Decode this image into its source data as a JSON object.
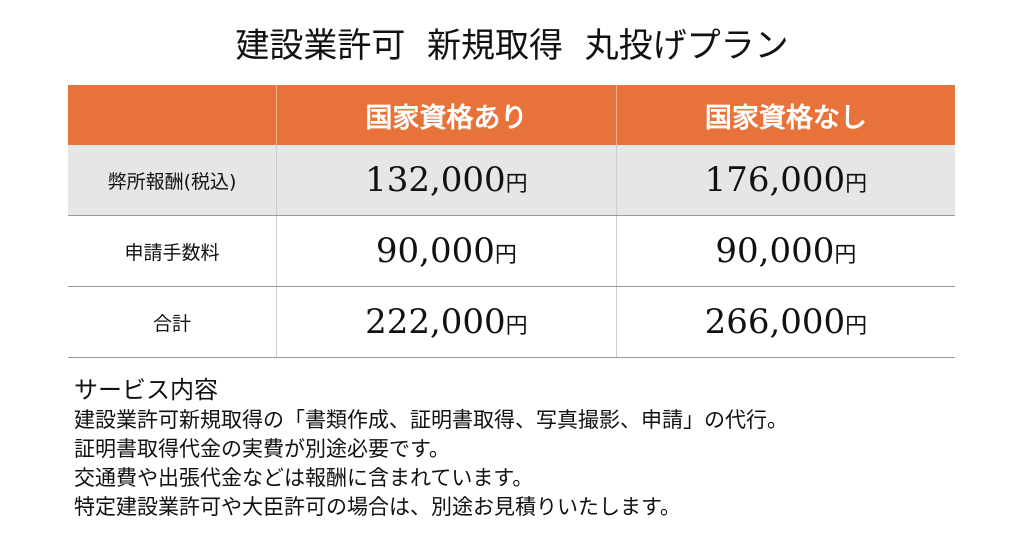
{
  "header": {
    "title": "建設業許可  新規取得  丸投げプラン"
  },
  "table": {
    "columns": [
      "国家資格あり",
      "国家資格なし"
    ],
    "rows": [
      {
        "label": "弊所報酬(税込)",
        "cells": [
          {
            "amount": "132,000",
            "unit": "円"
          },
          {
            "amount": "176,000",
            "unit": "円"
          }
        ]
      },
      {
        "label": "申請手数料",
        "cells": [
          {
            "amount": "90,000",
            "unit": "円"
          },
          {
            "amount": "90,000",
            "unit": "円"
          }
        ]
      },
      {
        "label": "合計",
        "cells": [
          {
            "amount": "222,000",
            "unit": "円"
          },
          {
            "amount": "266,000",
            "unit": "円"
          }
        ]
      }
    ]
  },
  "notes": {
    "heading": "サービス内容",
    "lines": [
      "建設業許可新規取得の「書類作成、証明書取得、写真撮影、申請」の代行。",
      "証明書取得代金の実費が別途必要です。",
      "交通費や出張代金などは報酬に含まれています。",
      "特定建設業許可や大臣許可の場合は、別途お見積りいたします。"
    ]
  }
}
